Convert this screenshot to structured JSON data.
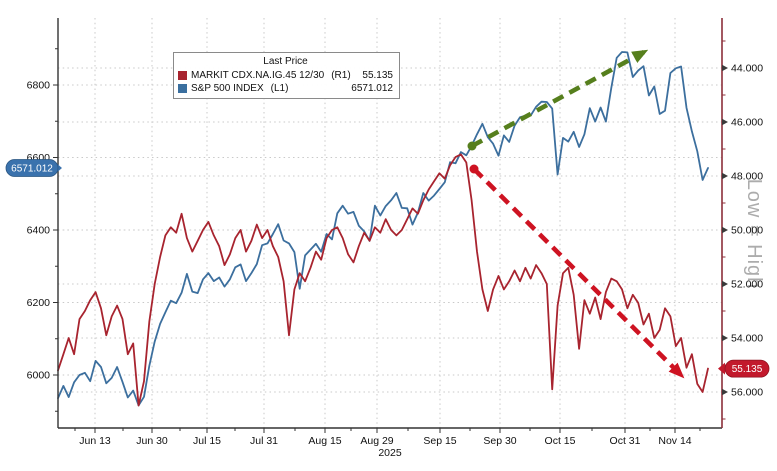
{
  "legend": {
    "title": "Last Price",
    "rows": [
      {
        "label": "MARKIT CDX.NA.IG.45 12/30",
        "axis": "(R1)",
        "value": "55.135",
        "swatch": "#a8242f"
      },
      {
        "label": "S&P 500 INDEX",
        "axis": "(L1)",
        "value": "6571.012",
        "swatch": "#3a6f9f"
      }
    ]
  },
  "chart_data": {
    "type": "line",
    "title": "Last Price",
    "x_tick_labels": [
      "Jun 13",
      "Jun 30",
      "Jul 15",
      "Jul 31",
      "Aug 15",
      "Aug 29",
      "Sep 15",
      "Sep 30",
      "Oct 15",
      "Oct 31",
      "Nov 14"
    ],
    "x_year_label": "2025",
    "left_axis": {
      "ticks": [
        6800,
        6600,
        6400,
        6200,
        6000
      ],
      "range": [
        5860,
        6985
      ],
      "grid": true
    },
    "right_axis": {
      "tick_labels": [
        "44.000",
        "46.000",
        "48.000",
        "50.000",
        "52.000",
        "54.000",
        "56.000"
      ],
      "ticks": [
        44,
        46,
        48,
        50,
        52,
        54,
        56
      ],
      "inverted": true,
      "grid": true,
      "watermark": "Low = High"
    },
    "series": [
      {
        "name": "S&P 500 INDEX",
        "axis": "L1",
        "color": "#3c6f9e",
        "last_price": 6571.012,
        "values": [
          5936,
          5970,
          5939,
          5980,
          6000,
          6006,
          5983,
          6039,
          6022,
          5977,
          5992,
          6022,
          5981,
          5938,
          5957,
          5916,
          5940,
          6025,
          6092,
          6141,
          6173,
          6205,
          6198,
          6227,
          6279,
          6230,
          6226,
          6264,
          6281,
          6259,
          6269,
          6244,
          6264,
          6297,
          6305,
          6259,
          6281,
          6306,
          6358,
          6363,
          6389,
          6416,
          6371,
          6363,
          6339,
          6238,
          6330,
          6346,
          6362,
          6340,
          6389,
          6374,
          6446,
          6467,
          6445,
          6450,
          6412,
          6396,
          6370,
          6467,
          6440,
          6466,
          6482,
          6502,
          6461,
          6460,
          6415,
          6448,
          6502,
          6481,
          6495,
          6513,
          6532,
          6587,
          6584,
          6615,
          6606,
          6632,
          6664,
          6693,
          6656,
          6638,
          6605,
          6661,
          6643,
          6688,
          6711,
          6715,
          6716,
          6740,
          6754,
          6753,
          6735,
          6553,
          6654,
          6644,
          6671,
          6629,
          6664,
          6736,
          6699,
          6738,
          6699,
          6792,
          6875,
          6891,
          6890,
          6822,
          6840,
          6852,
          6771,
          6796,
          6720,
          6729,
          6833,
          6846,
          6851,
          6737,
          6672,
          6617,
          6538,
          6571
        ]
      },
      {
        "name": "MARKIT CDX.NA.IG.45 12/30",
        "axis": "R1",
        "color": "#a8242f",
        "last_price": 55.135,
        "values": [
          55.2,
          54.6,
          54.0,
          54.6,
          53.3,
          53.0,
          52.6,
          52.3,
          52.9,
          53.9,
          53.2,
          52.8,
          53.3,
          54.6,
          54.2,
          56.5,
          55.6,
          53.4,
          52.0,
          51.0,
          50.2,
          49.9,
          50.1,
          49.4,
          50.3,
          50.8,
          50.4,
          50.0,
          49.7,
          50.2,
          50.6,
          51.3,
          50.9,
          50.3,
          50.0,
          50.8,
          50.4,
          49.8,
          50.3,
          50.0,
          50.6,
          51.0,
          51.9,
          53.9,
          52.2,
          51.6,
          51.9,
          51.4,
          50.8,
          51.1,
          50.3,
          50.0,
          49.9,
          50.3,
          50.9,
          51.2,
          50.6,
          50.1,
          50.4,
          49.9,
          50.1,
          49.6,
          50.0,
          50.2,
          50.0,
          49.6,
          49.2,
          49.4,
          48.9,
          48.5,
          48.2,
          47.9,
          48.1,
          47.6,
          47.3,
          47.2,
          47.5,
          48.9,
          50.8,
          52.2,
          53.0,
          52.2,
          51.7,
          52.2,
          51.9,
          51.5,
          51.9,
          51.4,
          51.8,
          51.3,
          51.6,
          52.0,
          55.9,
          52.8,
          51.6,
          51.4,
          52.4,
          54.4,
          52.6,
          53.1,
          52.5,
          53.3,
          52.3,
          51.8,
          51.9,
          52.2,
          52.9,
          52.4,
          52.7,
          53.5,
          53.1,
          54.0,
          53.7,
          52.9,
          53.2,
          54.3,
          54.0,
          55.1,
          54.6,
          55.7,
          56.0,
          55.135
        ]
      }
    ],
    "annotations": {
      "uptrend_arrow": {
        "color": "#567f1d",
        "from": [
          472,
          146
        ],
        "to": [
          644,
          52
        ]
      },
      "downtrend_arrow": {
        "color": "#ce1322",
        "from": [
          474,
          169
        ],
        "to": [
          681,
          375
        ]
      }
    },
    "price_tags": {
      "left": {
        "text": "6571.012",
        "value": 6571.012,
        "bg": "#3a72ad"
      },
      "right": {
        "text": "55.135",
        "value": 55.135,
        "bg": "#c2192c"
      }
    },
    "legend_position": "top-left-center",
    "grid": "dotted"
  }
}
